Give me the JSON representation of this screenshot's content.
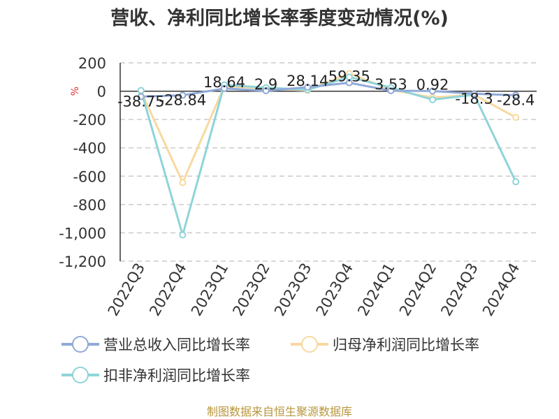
{
  "chart_data": {
    "type": "line",
    "title": "营收、净利同比增长率季度变动情况(%)",
    "ylabel": "%",
    "ylim": [
      -1200,
      200
    ],
    "yticks": [
      200,
      0,
      -200,
      -400,
      -600,
      -800,
      -1000,
      -1200
    ],
    "ytick_labels": [
      "200",
      "0",
      "-200",
      "-400",
      "-600",
      "-800",
      "-1,000",
      "-1,200"
    ],
    "grid": true,
    "legend_position": "bottom",
    "categories": [
      "2022Q3",
      "2022Q4",
      "2023Q1",
      "2023Q2",
      "2023Q3",
      "2023Q4",
      "2024Q1",
      "2024Q2",
      "2024Q3",
      "2024Q4"
    ],
    "series": [
      {
        "name": "营业总收入同比增长率",
        "color": "#8fa9d8",
        "values": [
          -38.75,
          -28.84,
          18.64,
          2.9,
          28.14,
          59.35,
          3.53,
          0.92,
          -18.3,
          -28.4
        ],
        "labels": [
          "-38.75",
          "-28.84",
          "18.64",
          "2.9",
          "28.14",
          "59.35",
          "3.53",
          "0.92",
          "-18.3",
          "-28.4"
        ]
      },
      {
        "name": "归母净利润同比增长率",
        "color": "#f8d9a0",
        "values": [
          0,
          -645,
          35,
          20,
          5,
          125,
          10,
          -45,
          -25,
          -185
        ]
      },
      {
        "name": "扣非净利润同比增长率",
        "color": "#8fd4d8",
        "values": [
          5,
          -1015,
          45,
          25,
          10,
          100,
          25,
          -60,
          -25,
          -640
        ]
      }
    ]
  },
  "source": "制图数据来自恒生聚源数据库"
}
